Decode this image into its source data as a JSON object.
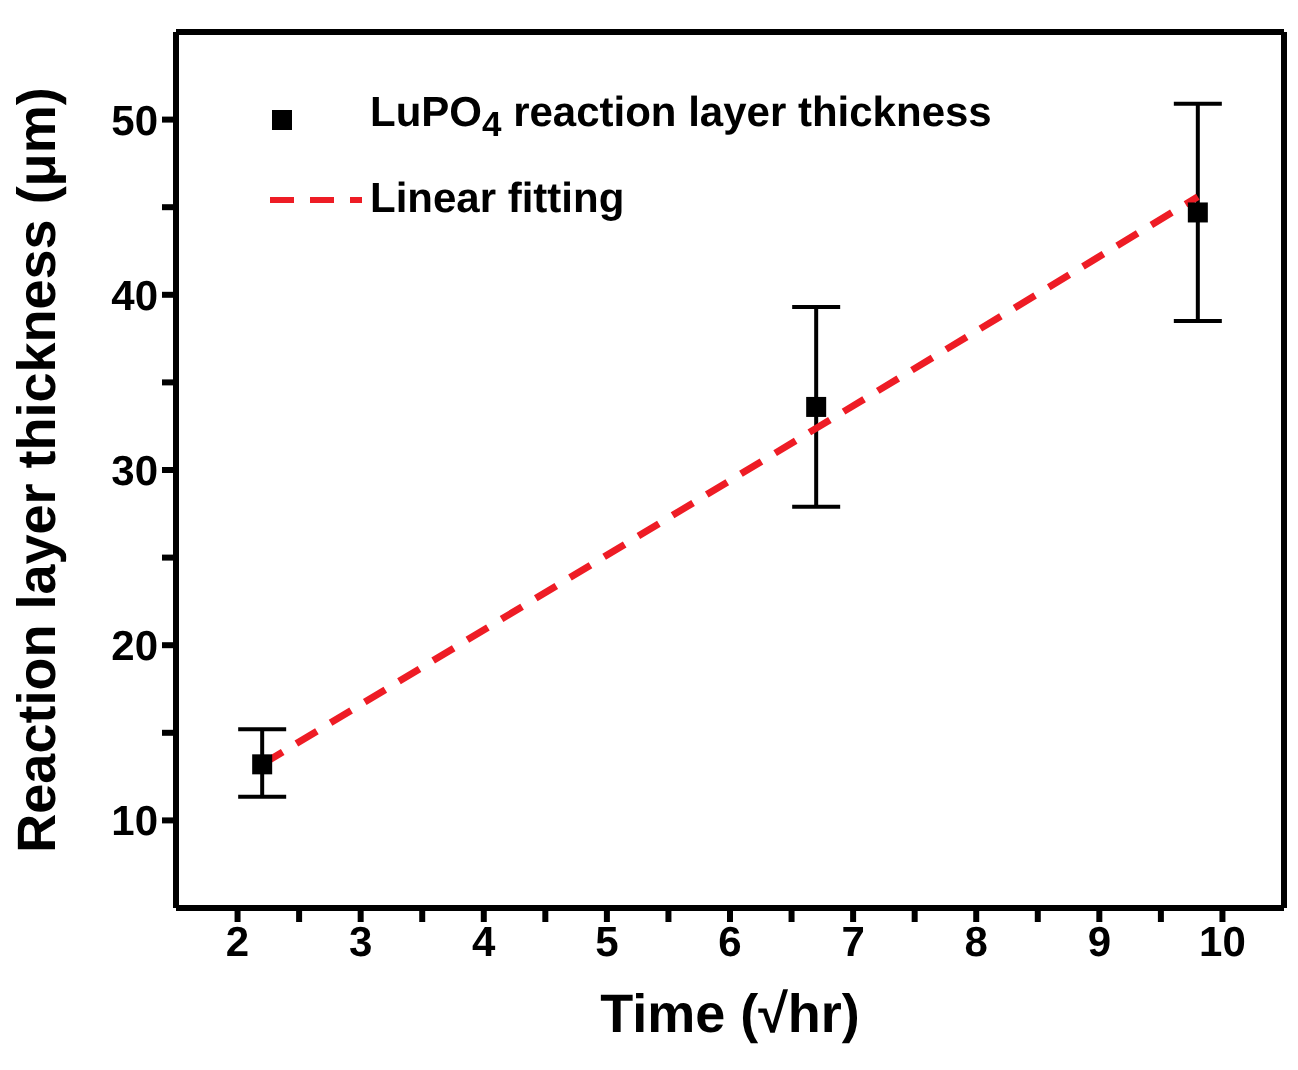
{
  "chart_data": {
    "type": "scatter",
    "xlabel": "Time (√hr)",
    "ylabel": "Reaction layer thickness (μm)",
    "xlim": [
      1.5,
      10.5
    ],
    "ylim": [
      5,
      55
    ],
    "xticks": [
      2,
      {
        "value": 2.5,
        "label": null
      },
      3,
      {
        "value": 3.5,
        "label": null
      },
      4,
      {
        "value": 4.5,
        "label": null
      },
      5,
      {
        "value": 5.5,
        "label": null
      },
      6,
      {
        "value": 6.5,
        "label": null
      },
      7,
      {
        "value": 7.5,
        "label": null
      },
      8,
      {
        "value": 8.5,
        "label": null
      },
      9,
      {
        "value": 9.5,
        "label": null
      },
      10
    ],
    "yticks": [
      10,
      {
        "value": 15,
        "label": null
      },
      20,
      {
        "value": 25,
        "label": null
      },
      30,
      {
        "value": 35,
        "label": null
      },
      40,
      {
        "value": 45,
        "label": null
      },
      50
    ],
    "legend": "top left",
    "grid": false,
    "series": [
      {
        "name": "LuPO$_{4}$ reaction layer thickness",
        "color": "#000000",
        "marker": "square",
        "x": [
          2.2,
          6.7,
          9.8
        ],
        "values": [
          13.2,
          33.6,
          44.7
        ],
        "errors": [
          [
            11.35,
            15.2
          ],
          [
            27.9,
            39.3
          ],
          [
            38.5,
            50.9
          ]
        ]
      },
      {
        "name": "Linear fitting",
        "type": "line",
        "color": "#ee1c25",
        "line_style": "dashed",
        "marker": "none",
        "x": [
          2.2,
          9.8
        ],
        "values": [
          13.2,
          45.6
        ]
      }
    ]
  }
}
